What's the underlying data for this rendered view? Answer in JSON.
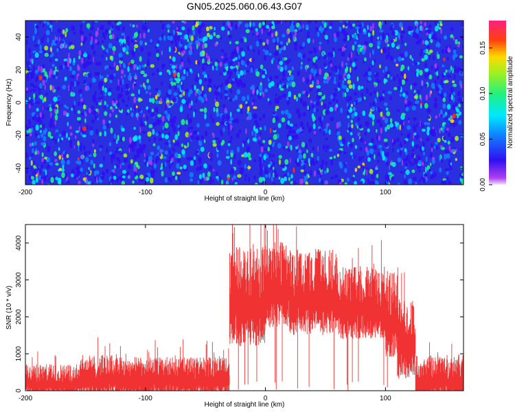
{
  "title": "GN05.2025.060.06.43.G07",
  "chart_data": [
    {
      "type": "heatmap",
      "xlabel": "Height of straight line (km)",
      "ylabel": "Frequency (Hz)",
      "xlim": [
        -200,
        165
      ],
      "ylim": [
        -50,
        50
      ],
      "x_ticks": [
        -200,
        -100,
        0,
        100
      ],
      "y_ticks": [
        -40,
        -20,
        0,
        20,
        40
      ],
      "colorbar": {
        "label": "Normalized spectral amplitude",
        "range": [
          0,
          0.18
        ],
        "ticks": [
          0.0,
          0.05,
          0.1,
          0.15
        ],
        "tick_labels": [
          "0.00",
          "0.05",
          "0.10",
          "0.15"
        ],
        "colormap": "rainbow (violet → blue → cyan → green → yellow → red → magenta)"
      },
      "description_level": "dense noise field, mostly 0.02–0.06 with scattered peaks up to ~0.17"
    },
    {
      "type": "area",
      "xlabel": "Height of straight line (km)",
      "ylabel": "SNR (10 * v/v)",
      "xlim": [
        -200,
        165
      ],
      "ylim": [
        0,
        4500
      ],
      "x_ticks": [
        -200,
        -100,
        0,
        100
      ],
      "y_ticks": [
        0,
        1000,
        2000,
        3000,
        4000
      ],
      "color": "#f03232",
      "segments": [
        {
          "x": [
            -200,
            -155
          ],
          "mean": 320,
          "spread": 500
        },
        {
          "x": [
            -155,
            -120
          ],
          "mean": 450,
          "spread": 650
        },
        {
          "x": [
            -120,
            -30
          ],
          "mean": 430,
          "spread": 600
        },
        {
          "x": [
            -30,
            0
          ],
          "mean": 2700,
          "spread": 1500
        },
        {
          "x": [
            0,
            20
          ],
          "mean": 3000,
          "spread": 1300
        },
        {
          "x": [
            20,
            60
          ],
          "mean": 2800,
          "spread": 1300
        },
        {
          "x": [
            60,
            100
          ],
          "mean": 2500,
          "spread": 1100
        },
        {
          "x": [
            100,
            110
          ],
          "mean": 2200,
          "spread": 1300
        },
        {
          "x": [
            110,
            125
          ],
          "mean": 1500,
          "spread": 1200
        },
        {
          "x": [
            125,
            165
          ],
          "mean": 420,
          "spread": 700
        }
      ]
    }
  ]
}
